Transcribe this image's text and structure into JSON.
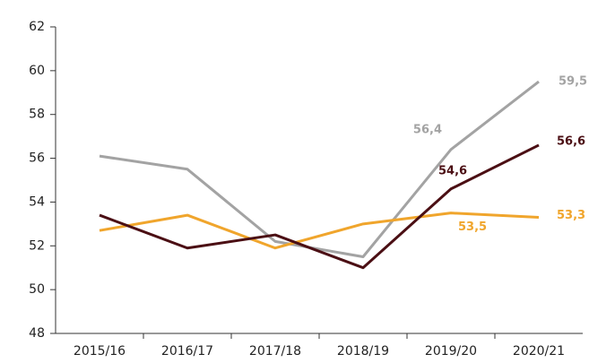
{
  "chart_data": {
    "type": "line",
    "categories": [
      "2015/16",
      "2016/17",
      "2017/18",
      "2018/19",
      "2019/20",
      "2020/21"
    ],
    "series": [
      {
        "color": "#a3a3a3",
        "values": [
          56.1,
          55.5,
          52.2,
          51.5,
          56.4,
          59.5
        ],
        "value_labels": [
          null,
          null,
          null,
          null,
          "56,4",
          "59,5"
        ]
      },
      {
        "color": "#f0a52c",
        "values": [
          52.7,
          53.4,
          51.9,
          53.0,
          53.5,
          53.3
        ],
        "value_labels": [
          null,
          null,
          null,
          null,
          "53,5",
          "53,3"
        ]
      },
      {
        "color": "#4b0f14",
        "values": [
          53.4,
          51.9,
          52.5,
          51.0,
          54.6,
          56.6
        ],
        "value_labels": [
          null,
          null,
          null,
          null,
          "54,6",
          "56,6"
        ]
      }
    ],
    "ylim": [
      48,
      62
    ],
    "yticks": [
      48,
      50,
      52,
      54,
      56,
      58,
      60,
      62
    ],
    "grid": false
  }
}
